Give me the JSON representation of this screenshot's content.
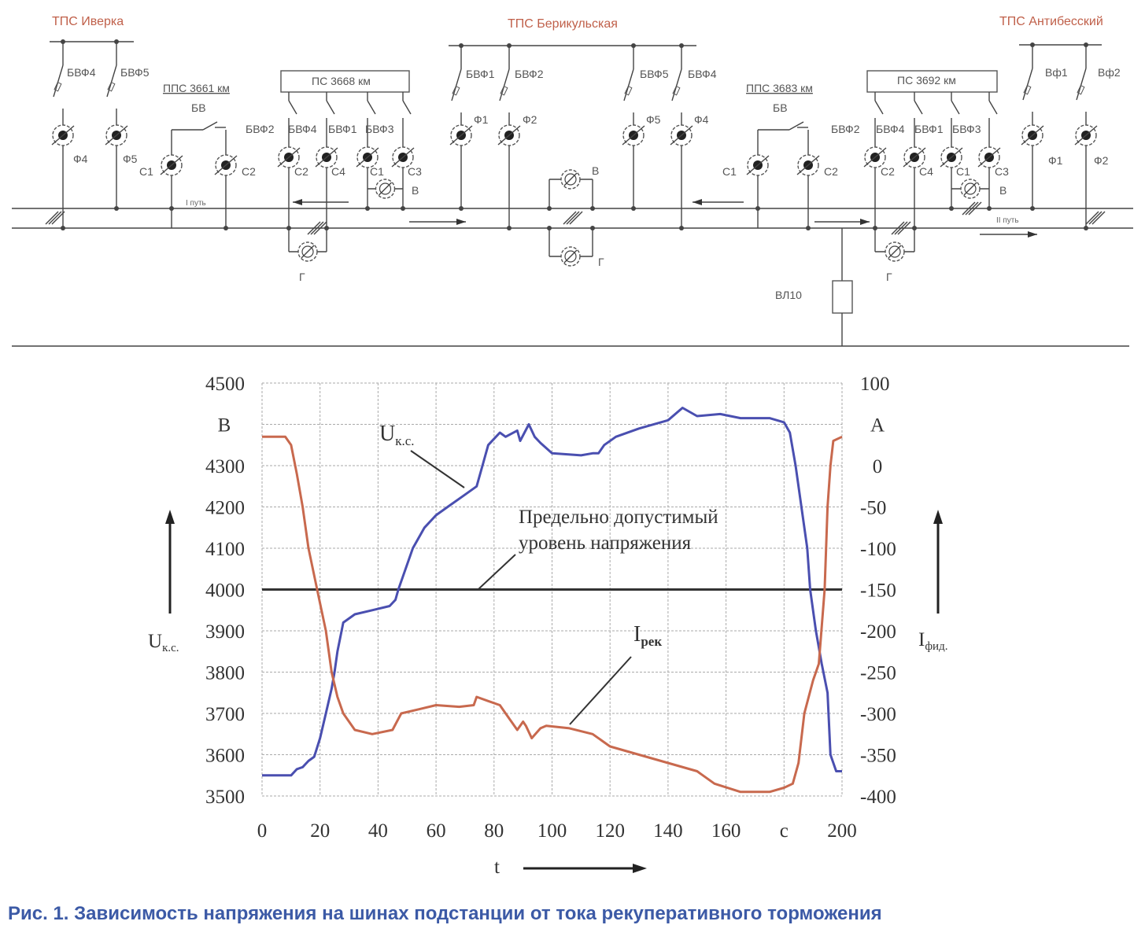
{
  "schematic": {
    "stations": [
      "ТПС Иверка",
      "ТПС Берикульская",
      "ТПС Антибесский"
    ],
    "iverka": {
      "switches": [
        "БВФ4",
        "БВФ5"
      ],
      "feeders": [
        "Ф4",
        "Ф5"
      ]
    },
    "pps3661": {
      "title": "ППС 3661 км",
      "switch": "БВ",
      "sections": [
        "С1",
        "С2"
      ]
    },
    "ps3668": {
      "title": "ПС 3668 км",
      "switches": [
        "БВФ2",
        "БВФ4",
        "БВФ1",
        "БВФ3"
      ],
      "sections": [
        "С2",
        "С4",
        "С1",
        "С3"
      ],
      "bypass": [
        "В",
        "Г"
      ]
    },
    "berikul": {
      "switches": [
        "БВФ1",
        "БВФ2",
        "БВФ5",
        "БВФ4"
      ],
      "feeders": [
        "Ф1",
        "Ф2",
        "Ф5",
        "Ф4"
      ],
      "bypass": [
        "В",
        "Г"
      ]
    },
    "pps3683": {
      "title": "ППС 3683 км",
      "switch": "БВ",
      "sections": [
        "С1",
        "С2"
      ]
    },
    "ps3692": {
      "title": "ПС 3692 км",
      "switches": [
        "БВФ2",
        "БВФ4",
        "БВФ1",
        "БВФ3"
      ],
      "sections": [
        "С2",
        "С4",
        "С1",
        "С3"
      ],
      "bypass": [
        "В",
        "Г"
      ]
    },
    "antibess": {
      "switches": [
        "Вф1",
        "Вф2"
      ],
      "feeders": [
        "Ф1",
        "Ф2"
      ]
    },
    "track1": "I путь",
    "track2": "II путь",
    "line": "ВЛ10"
  },
  "chart_data": {
    "type": "line",
    "title": "",
    "xlabel": "t",
    "x_unit": "с",
    "ylabel_left": "Uк.с.",
    "ylabel_left_unit": "В",
    "ylabel_right": "Iфид.",
    "ylabel_right_unit": "А",
    "xlim": [
      0,
      200
    ],
    "ylim_left": [
      3500,
      4500
    ],
    "ylim_right": [
      -400,
      100
    ],
    "x_ticks": [
      "0",
      "20",
      "40",
      "60",
      "80",
      "100",
      "120",
      "140",
      "160",
      "с",
      "200"
    ],
    "y_left_ticks": [
      "4500",
      "В",
      "4300",
      "4200",
      "4100",
      "4000",
      "3900",
      "3800",
      "3700",
      "3600",
      "3500"
    ],
    "y_right_ticks": [
      "100",
      "А",
      "0",
      "-50",
      "-100",
      "-150",
      "-200",
      "-250",
      "-300",
      "-350",
      "-400"
    ],
    "grid": true,
    "limit_line": {
      "value": 4000,
      "label_line1": "Предельно допустимый",
      "label_line2": "уровень напряжения"
    },
    "series": [
      {
        "name": "Uк.с.",
        "label_main": "U",
        "label_sub": "к.с.",
        "axis": "left",
        "color": "#4a4fb0",
        "x": [
          0,
          10,
          12,
          14,
          16,
          18,
          20,
          22,
          24,
          25,
          26,
          28,
          32,
          38,
          44,
          46,
          47,
          52,
          56,
          60,
          64,
          70,
          74,
          76,
          78,
          82,
          84,
          88,
          89,
          92,
          94,
          96,
          100,
          110,
          114,
          116,
          118,
          122,
          130,
          140,
          145,
          150,
          158,
          165,
          175,
          180,
          182,
          184,
          186,
          188,
          189,
          191,
          193,
          195,
          196,
          198,
          200
        ],
        "y": [
          3550,
          3550,
          3565,
          3570,
          3585,
          3595,
          3640,
          3700,
          3760,
          3800,
          3850,
          3920,
          3940,
          3950,
          3960,
          3975,
          4000,
          4100,
          4150,
          4180,
          4200,
          4230,
          4250,
          4300,
          4350,
          4380,
          4370,
          4385,
          4360,
          4400,
          4370,
          4355,
          4330,
          4325,
          4330,
          4330,
          4350,
          4370,
          4390,
          4410,
          4440,
          4420,
          4425,
          4415,
          4415,
          4405,
          4380,
          4300,
          4200,
          4100,
          4000,
          3900,
          3820,
          3750,
          3600,
          3560,
          3560
        ]
      },
      {
        "name": "Iрек",
        "label_main": "I",
        "label_sub": "рек",
        "axis": "right",
        "color": "#c8694e",
        "x": [
          0,
          8,
          10,
          12,
          14,
          16,
          19,
          22,
          24,
          26,
          28,
          32,
          38,
          45,
          48,
          54,
          60,
          68,
          73,
          74,
          78,
          82,
          84,
          88,
          90,
          91,
          93,
          96,
          98,
          106,
          114,
          120,
          130,
          140,
          150,
          156,
          165,
          175,
          180,
          183,
          185,
          187,
          190,
          192,
          194,
          195,
          196,
          197,
          200
        ],
        "y": [
          35,
          35,
          25,
          -10,
          -50,
          -100,
          -150,
          -200,
          -250,
          -280,
          -300,
          -320,
          -325,
          -320,
          -300,
          -295,
          -290,
          -292,
          -290,
          -280,
          -285,
          -290,
          -300,
          -320,
          -310,
          -315,
          -330,
          -318,
          -315,
          -318,
          -325,
          -340,
          -350,
          -360,
          -370,
          -385,
          -395,
          -395,
          -390,
          -385,
          -360,
          -300,
          -260,
          -240,
          -150,
          -50,
          0,
          30,
          35
        ]
      }
    ]
  },
  "caption": "Рис. 1. Зависимость напряжения на шинах подстанции от тока рекуперативного торможения"
}
